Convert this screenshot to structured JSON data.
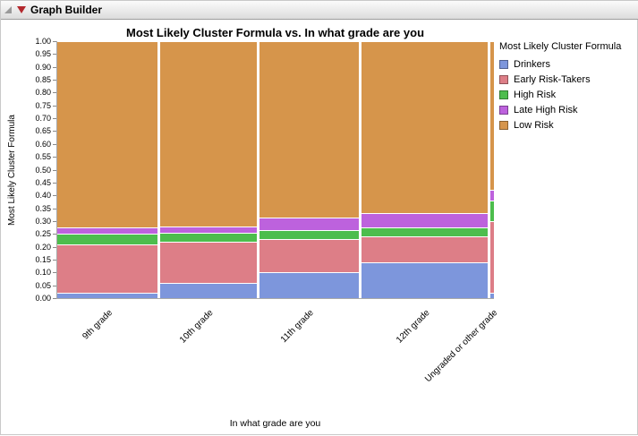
{
  "window": {
    "title": "Graph Builder"
  },
  "chart_data": {
    "type": "mosaic",
    "title": "Most Likely Cluster Formula vs. In what grade are you",
    "xlabel": "In what grade are you",
    "ylabel": "Most Likely Cluster Formula",
    "ylim": [
      0,
      1
    ],
    "ytick_step": 0.05,
    "yticks": [
      "1.00",
      "0.95",
      "0.90",
      "0.85",
      "0.80",
      "0.75",
      "0.70",
      "0.65",
      "0.60",
      "0.55",
      "0.50",
      "0.45",
      "0.40",
      "0.35",
      "0.30",
      "0.25",
      "0.20",
      "0.15",
      "0.10",
      "0.05",
      "0.00"
    ],
    "legend_title": "Most Likely Cluster Formula",
    "legend_position": "right",
    "grid": false,
    "series": [
      {
        "name": "Drinkers",
        "color": "#7D96DC"
      },
      {
        "name": "Early Risk-Takers",
        "color": "#DD7E87"
      },
      {
        "name": "High Risk",
        "color": "#4DBD4D"
      },
      {
        "name": "Late High Risk",
        "color": "#BD62DD"
      },
      {
        "name": "Low Risk",
        "color": "#D6954B"
      }
    ],
    "categories": [
      {
        "label": "9th grade",
        "width": 0.232,
        "values": [
          0.02,
          0.19,
          0.04,
          0.025,
          0.725
        ]
      },
      {
        "label": "10th grade",
        "width": 0.221,
        "values": [
          0.06,
          0.16,
          0.035,
          0.025,
          0.72
        ]
      },
      {
        "label": "11th grade",
        "width": 0.229,
        "values": [
          0.1,
          0.13,
          0.035,
          0.05,
          0.685
        ]
      },
      {
        "label": "12th grade",
        "width": 0.292,
        "values": [
          0.14,
          0.1,
          0.035,
          0.055,
          0.67
        ]
      },
      {
        "label": "Ungraded or other grade",
        "width": 0.008,
        "values": [
          0.02,
          0.28,
          0.08,
          0.04,
          0.58
        ]
      }
    ]
  }
}
